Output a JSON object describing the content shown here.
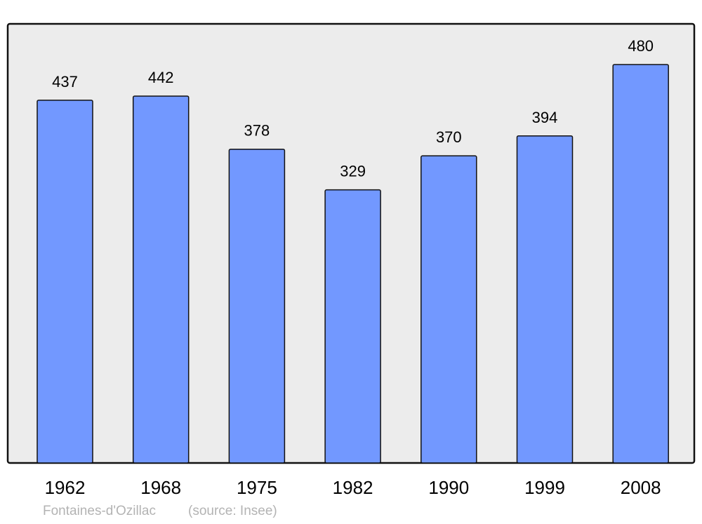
{
  "chart_data": {
    "type": "bar",
    "categories": [
      "1962",
      "1968",
      "1975",
      "1982",
      "1990",
      "1999",
      "2008"
    ],
    "values": [
      437,
      442,
      378,
      329,
      370,
      394,
      480
    ],
    "data_labels": [
      "437",
      "442",
      "378",
      "329",
      "370",
      "394",
      "480"
    ],
    "title": "",
    "xlabel": "",
    "ylabel": "",
    "ylim": [
      0,
      529
    ],
    "grid": false,
    "colors": {
      "bar": "#7298ff",
      "background": "#ececec",
      "border": "#000000"
    }
  },
  "footer": {
    "place": "Fontaines-d'Ozillac",
    "source": "(source: Insee)"
  }
}
